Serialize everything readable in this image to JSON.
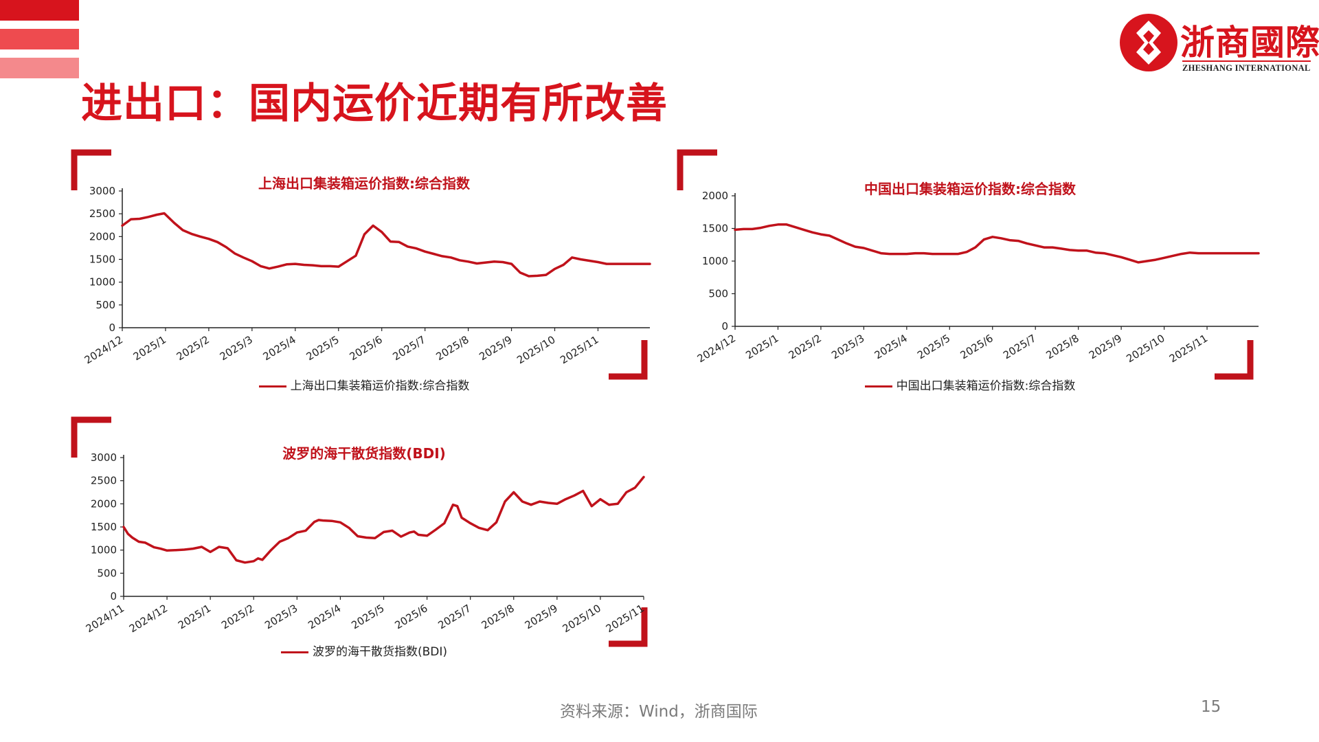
{
  "page": {
    "title": "进出口：国内运价近期有所改善",
    "source": "资料来源：Wind，浙商国际",
    "page_number": "15",
    "accent_color": "#d7141d",
    "logo": {
      "name_cn": "浙商國際",
      "name_en": "ZHESHANG INTERNATIONAL"
    }
  },
  "chart_data": [
    {
      "type": "line",
      "title": "上海出口集装箱运价指数:综合指数",
      "legend": "上海出口集装箱运价指数:综合指数",
      "color": "#c0121b",
      "ylim": [
        0,
        3000
      ],
      "yticks": [
        0,
        500,
        1000,
        1500,
        2000,
        2500,
        3000
      ],
      "xlim": [
        0,
        12.2
      ],
      "xtick_labels": [
        "2024/12",
        "2025/1",
        "2025/2",
        "2025/3",
        "2025/4",
        "2025/5",
        "2025/6",
        "2025/7",
        "2025/8",
        "2025/9",
        "2025/10",
        "2025/11"
      ],
      "series": [
        {
          "x": [
            0,
            0.2,
            0.4,
            0.6,
            0.8,
            0.97,
            1.2,
            1.4,
            1.6,
            1.8,
            2.0,
            2.2,
            2.4,
            2.6,
            2.8,
            3.0,
            3.2,
            3.4,
            3.6,
            3.8,
            4.0,
            4.2,
            4.4,
            4.6,
            4.8,
            5.0,
            5.2,
            5.4,
            5.6,
            5.8,
            6.0,
            6.2,
            6.4,
            6.6,
            6.8,
            7.0,
            7.2,
            7.4,
            7.6,
            7.8,
            8.0,
            8.2,
            8.4,
            8.6,
            8.8,
            9.0,
            9.2,
            9.4,
            9.6,
            9.8,
            10.0,
            10.2,
            10.4,
            10.6,
            10.8,
            11.0,
            11.2,
            11.4,
            11.6,
            11.8,
            12.0,
            12.2
          ],
          "y": [
            2240,
            2380,
            2390,
            2430,
            2480,
            2510,
            2300,
            2140,
            2060,
            2000,
            1950,
            1880,
            1770,
            1630,
            1540,
            1460,
            1350,
            1300,
            1340,
            1390,
            1400,
            1380,
            1370,
            1350,
            1350,
            1340,
            1460,
            1580,
            2050,
            2240,
            2100,
            1890,
            1880,
            1780,
            1740,
            1670,
            1620,
            1570,
            1540,
            1480,
            1450,
            1410,
            1430,
            1450,
            1440,
            1400,
            1210,
            1130,
            1140,
            1160,
            1290,
            1380,
            1540,
            1500,
            1470,
            1440,
            1400,
            1400,
            1400,
            1400,
            1400,
            1400
          ]
        }
      ]
    },
    {
      "type": "line",
      "title": "中国出口集装箱运价指数:综合指数",
      "legend": "中国出口集装箱运价指数:综合指数",
      "color": "#c0121b",
      "ylim": [
        0,
        2000
      ],
      "yticks": [
        0,
        500,
        1000,
        1500,
        2000
      ],
      "xlim": [
        0,
        12.2
      ],
      "xtick_labels": [
        "2024/12",
        "2025/1",
        "2025/2",
        "2025/3",
        "2025/4",
        "2025/5",
        "2025/6",
        "2025/7",
        "2025/8",
        "2025/9",
        "2025/10",
        "2025/11"
      ],
      "series": [
        {
          "x": [
            0,
            0.2,
            0.4,
            0.6,
            0.8,
            1.0,
            1.2,
            1.4,
            1.6,
            1.8,
            2.0,
            2.2,
            2.4,
            2.6,
            2.8,
            3.0,
            3.2,
            3.4,
            3.6,
            3.8,
            4.0,
            4.2,
            4.4,
            4.6,
            4.8,
            5.0,
            5.2,
            5.4,
            5.6,
            5.8,
            6.0,
            6.2,
            6.4,
            6.6,
            6.8,
            7.0,
            7.2,
            7.4,
            7.6,
            7.8,
            8.0,
            8.2,
            8.4,
            8.6,
            8.8,
            9.0,
            9.2,
            9.4,
            9.6,
            9.8,
            10.0,
            10.2,
            10.4,
            10.6,
            10.8,
            11.0,
            11.2,
            11.4,
            11.6,
            11.8,
            12.0,
            12.2
          ],
          "y": [
            1480,
            1490,
            1490,
            1510,
            1540,
            1560,
            1560,
            1520,
            1480,
            1440,
            1410,
            1390,
            1330,
            1270,
            1220,
            1200,
            1160,
            1120,
            1110,
            1110,
            1110,
            1120,
            1120,
            1110,
            1110,
            1110,
            1110,
            1140,
            1210,
            1330,
            1370,
            1350,
            1320,
            1310,
            1270,
            1240,
            1210,
            1210,
            1190,
            1170,
            1160,
            1160,
            1130,
            1120,
            1090,
            1060,
            1020,
            980,
            1000,
            1020,
            1050,
            1080,
            1110,
            1130,
            1120,
            1120,
            1120,
            1120,
            1120,
            1120,
            1120,
            1120
          ]
        }
      ]
    },
    {
      "type": "line",
      "title": "波罗的海干散货指数(BDI)",
      "legend": "波罗的海干散货指数(BDI)",
      "color": "#c0121b",
      "ylim": [
        0,
        3000
      ],
      "yticks": [
        0,
        500,
        1000,
        1500,
        2000,
        2500,
        3000
      ],
      "xlim": [
        0,
        12.0
      ],
      "xtick_labels": [
        "2024/11",
        "2024/12",
        "2025/1",
        "2025/2",
        "2025/3",
        "2025/4",
        "2025/5",
        "2025/6",
        "2025/7",
        "2025/8",
        "2025/9",
        "2025/10",
        "2025/11"
      ],
      "series": [
        {
          "x": [
            0,
            0.1,
            0.2,
            0.35,
            0.5,
            0.7,
            0.85,
            1.0,
            1.2,
            1.4,
            1.6,
            1.8,
            2.0,
            2.2,
            2.4,
            2.6,
            2.8,
            3.0,
            3.1,
            3.2,
            3.4,
            3.5,
            3.6,
            3.8,
            4.0,
            4.2,
            4.4,
            4.5,
            4.6,
            4.8,
            5.0,
            5.2,
            5.4,
            5.6,
            5.8,
            6.0,
            6.2,
            6.4,
            6.6,
            6.7,
            6.8,
            7.0,
            7.2,
            7.4,
            7.6,
            7.7,
            7.8,
            8.0,
            8.2,
            8.4,
            8.6,
            8.8,
            9.0,
            9.2,
            9.4,
            9.6,
            9.8,
            10.0,
            10.2,
            10.4,
            10.6,
            10.8,
            11.0,
            11.2,
            11.4,
            11.6,
            11.8,
            12.0
          ],
          "y": [
            1500,
            1350,
            1270,
            1180,
            1160,
            1060,
            1030,
            990,
            1000,
            1010,
            1030,
            1070,
            960,
            1070,
            1040,
            780,
            730,
            760,
            820,
            790,
            1000,
            1090,
            1180,
            1260,
            1380,
            1420,
            1610,
            1650,
            1640,
            1630,
            1600,
            1480,
            1300,
            1270,
            1260,
            1390,
            1420,
            1290,
            1380,
            1400,
            1330,
            1310,
            1440,
            1580,
            1980,
            1950,
            1700,
            1580,
            1480,
            1430,
            1600,
            2050,
            2250,
            2050,
            1980,
            2050,
            2020,
            2000,
            2100,
            2180,
            2280,
            1950,
            2100,
            1980,
            2000,
            2250,
            2350,
            2580
          ]
        }
      ]
    }
  ]
}
